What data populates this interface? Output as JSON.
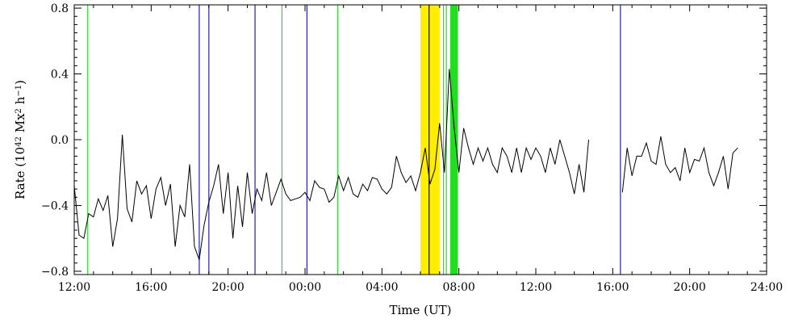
{
  "chart_data": {
    "type": "line",
    "title": "",
    "xlabel": "Time (UT)",
    "ylabel_parts": [
      "Rate  (10",
      "42",
      " Mx",
      "2",
      " h",
      "−1",
      ")"
    ],
    "x_unit": "hours from 12:00 UT on first day",
    "xlim": [
      0,
      36
    ],
    "ylim": [
      -0.82,
      0.82
    ],
    "x_ticks": [
      0,
      4,
      8,
      12,
      16,
      20,
      24,
      28,
      32,
      36
    ],
    "x_tick_labels": [
      "12:00",
      "16:00",
      "20:00",
      "00:00",
      "04:00",
      "08:00",
      "12:00",
      "16:00",
      "20:00",
      "24:00"
    ],
    "y_ticks": [
      -0.8,
      -0.4,
      0.0,
      0.4,
      0.8
    ],
    "y_tick_labels": [
      "−0.8",
      "−0.4",
      "0.0",
      "0.4",
      "0.8"
    ],
    "line_color": "#000000",
    "series": [
      {
        "segments": [
          [
            [
              0.0,
              -0.28
            ],
            [
              0.25,
              -0.58
            ],
            [
              0.5,
              -0.6
            ],
            [
              0.75,
              -0.45
            ],
            [
              1.0,
              -0.47
            ],
            [
              1.25,
              -0.36
            ],
            [
              1.5,
              -0.43
            ],
            [
              1.75,
              -0.34
            ],
            [
              2.0,
              -0.65
            ],
            [
              2.25,
              -0.48
            ],
            [
              2.5,
              0.03
            ],
            [
              2.75,
              -0.42
            ],
            [
              3.0,
              -0.5
            ],
            [
              3.25,
              -0.25
            ],
            [
              3.5,
              -0.33
            ],
            [
              3.75,
              -0.28
            ],
            [
              4.0,
              -0.48
            ],
            [
              4.25,
              -0.3
            ],
            [
              4.5,
              -0.23
            ],
            [
              4.75,
              -0.4
            ],
            [
              5.0,
              -0.27
            ],
            [
              5.25,
              -0.65
            ],
            [
              5.5,
              -0.4
            ],
            [
              5.75,
              -0.47
            ],
            [
              6.0,
              -0.15
            ],
            [
              6.25,
              -0.65
            ],
            [
              6.5,
              -0.73
            ],
            [
              6.75,
              -0.52
            ],
            [
              7.0,
              -0.38
            ],
            [
              7.25,
              -0.28
            ],
            [
              7.5,
              -0.15
            ],
            [
              7.75,
              -0.45
            ],
            [
              8.0,
              -0.2
            ],
            [
              8.25,
              -0.6
            ],
            [
              8.5,
              -0.28
            ],
            [
              8.75,
              -0.53
            ],
            [
              9.0,
              -0.2
            ],
            [
              9.25,
              -0.45
            ],
            [
              9.5,
              -0.3
            ],
            [
              9.75,
              -0.37
            ],
            [
              10.0,
              -0.2
            ],
            [
              10.25,
              -0.4
            ],
            [
              10.5,
              -0.32
            ],
            [
              10.75,
              -0.24
            ],
            [
              11.0,
              -0.33
            ],
            [
              11.25,
              -0.37
            ],
            [
              11.5,
              -0.36
            ],
            [
              11.75,
              -0.35
            ],
            [
              12.0,
              -0.32
            ],
            [
              12.25,
              -0.37
            ],
            [
              12.5,
              -0.25
            ],
            [
              12.75,
              -0.29
            ],
            [
              13.0,
              -0.3
            ],
            [
              13.25,
              -0.38
            ],
            [
              13.5,
              -0.35
            ],
            [
              13.75,
              -0.22
            ],
            [
              14.0,
              -0.31
            ],
            [
              14.25,
              -0.23
            ],
            [
              14.5,
              -0.33
            ],
            [
              14.75,
              -0.35
            ],
            [
              15.0,
              -0.27
            ],
            [
              15.25,
              -0.31
            ],
            [
              15.5,
              -0.23
            ],
            [
              15.75,
              -0.24
            ],
            [
              16.0,
              -0.3
            ],
            [
              16.25,
              -0.33
            ],
            [
              16.5,
              -0.29
            ],
            [
              16.75,
              -0.1
            ],
            [
              17.0,
              -0.2
            ],
            [
              17.25,
              -0.26
            ],
            [
              17.5,
              -0.22
            ],
            [
              17.75,
              -0.31
            ],
            [
              18.0,
              -0.2
            ],
            [
              18.25,
              -0.05
            ],
            [
              18.5,
              -0.27
            ],
            [
              18.75,
              -0.18
            ],
            [
              19.0,
              0.1
            ],
            [
              19.25,
              -0.2
            ],
            [
              19.5,
              0.43
            ],
            [
              19.75,
              0.08
            ],
            [
              20.0,
              -0.2
            ],
            [
              20.25,
              0.07
            ],
            [
              20.5,
              -0.05
            ],
            [
              20.75,
              -0.15
            ],
            [
              21.0,
              -0.05
            ],
            [
              21.25,
              -0.13
            ],
            [
              21.5,
              -0.05
            ],
            [
              21.75,
              -0.15
            ],
            [
              22.0,
              -0.2
            ],
            [
              22.25,
              -0.05
            ],
            [
              22.5,
              -0.1
            ],
            [
              22.75,
              -0.2
            ],
            [
              23.0,
              -0.05
            ],
            [
              23.25,
              -0.2
            ],
            [
              23.5,
              -0.05
            ],
            [
              23.75,
              -0.12
            ],
            [
              24.0,
              -0.05
            ],
            [
              24.25,
              -0.1
            ],
            [
              24.5,
              -0.2
            ],
            [
              24.75,
              -0.05
            ],
            [
              25.0,
              -0.15
            ],
            [
              25.25,
              0.0
            ],
            [
              25.5,
              -0.1
            ],
            [
              25.75,
              -0.2
            ],
            [
              26.0,
              -0.33
            ],
            [
              26.25,
              -0.15
            ],
            [
              26.5,
              -0.32
            ],
            [
              26.75,
              -0.0
            ]
          ],
          [
            [
              28.5,
              -0.32
            ],
            [
              28.75,
              -0.05
            ],
            [
              29.0,
              -0.22
            ],
            [
              29.25,
              -0.1
            ],
            [
              29.5,
              -0.1
            ],
            [
              29.75,
              -0.02
            ],
            [
              30.0,
              -0.13
            ],
            [
              30.25,
              -0.15
            ],
            [
              30.5,
              0.02
            ],
            [
              30.75,
              -0.15
            ],
            [
              31.0,
              -0.2
            ],
            [
              31.25,
              -0.17
            ],
            [
              31.5,
              -0.25
            ],
            [
              31.75,
              -0.05
            ],
            [
              32.0,
              -0.2
            ],
            [
              32.25,
              -0.12
            ],
            [
              32.5,
              -0.13
            ],
            [
              32.75,
              -0.05
            ],
            [
              33.0,
              -0.2
            ],
            [
              33.25,
              -0.28
            ],
            [
              33.5,
              -0.2
            ],
            [
              33.75,
              -0.1
            ],
            [
              34.0,
              -0.3
            ],
            [
              34.25,
              -0.08
            ],
            [
              34.5,
              -0.05
            ]
          ]
        ]
      }
    ],
    "bands": [
      {
        "x0": 18.0,
        "x1": 19.0,
        "color": "#ffee00"
      },
      {
        "x0": 19.55,
        "x1": 19.95,
        "color": "#22dd22"
      }
    ],
    "vlines": [
      {
        "x": 0.7,
        "color": "#33dd33"
      },
      {
        "x": 6.5,
        "color": "#2222aa"
      },
      {
        "x": 7.0,
        "color": "#2222aa"
      },
      {
        "x": 9.4,
        "color": "#2222aa"
      },
      {
        "x": 10.8,
        "color": "#33dd33"
      },
      {
        "x": 12.1,
        "color": "#2222aa"
      },
      {
        "x": 13.7,
        "color": "#33dd33"
      },
      {
        "x": 18.45,
        "color": "#000000"
      },
      {
        "x": 19.2,
        "color": "#22dd22"
      },
      {
        "x": 19.35,
        "color": "#22dd22"
      },
      {
        "x": 28.4,
        "color": "#2222aa"
      }
    ]
  }
}
